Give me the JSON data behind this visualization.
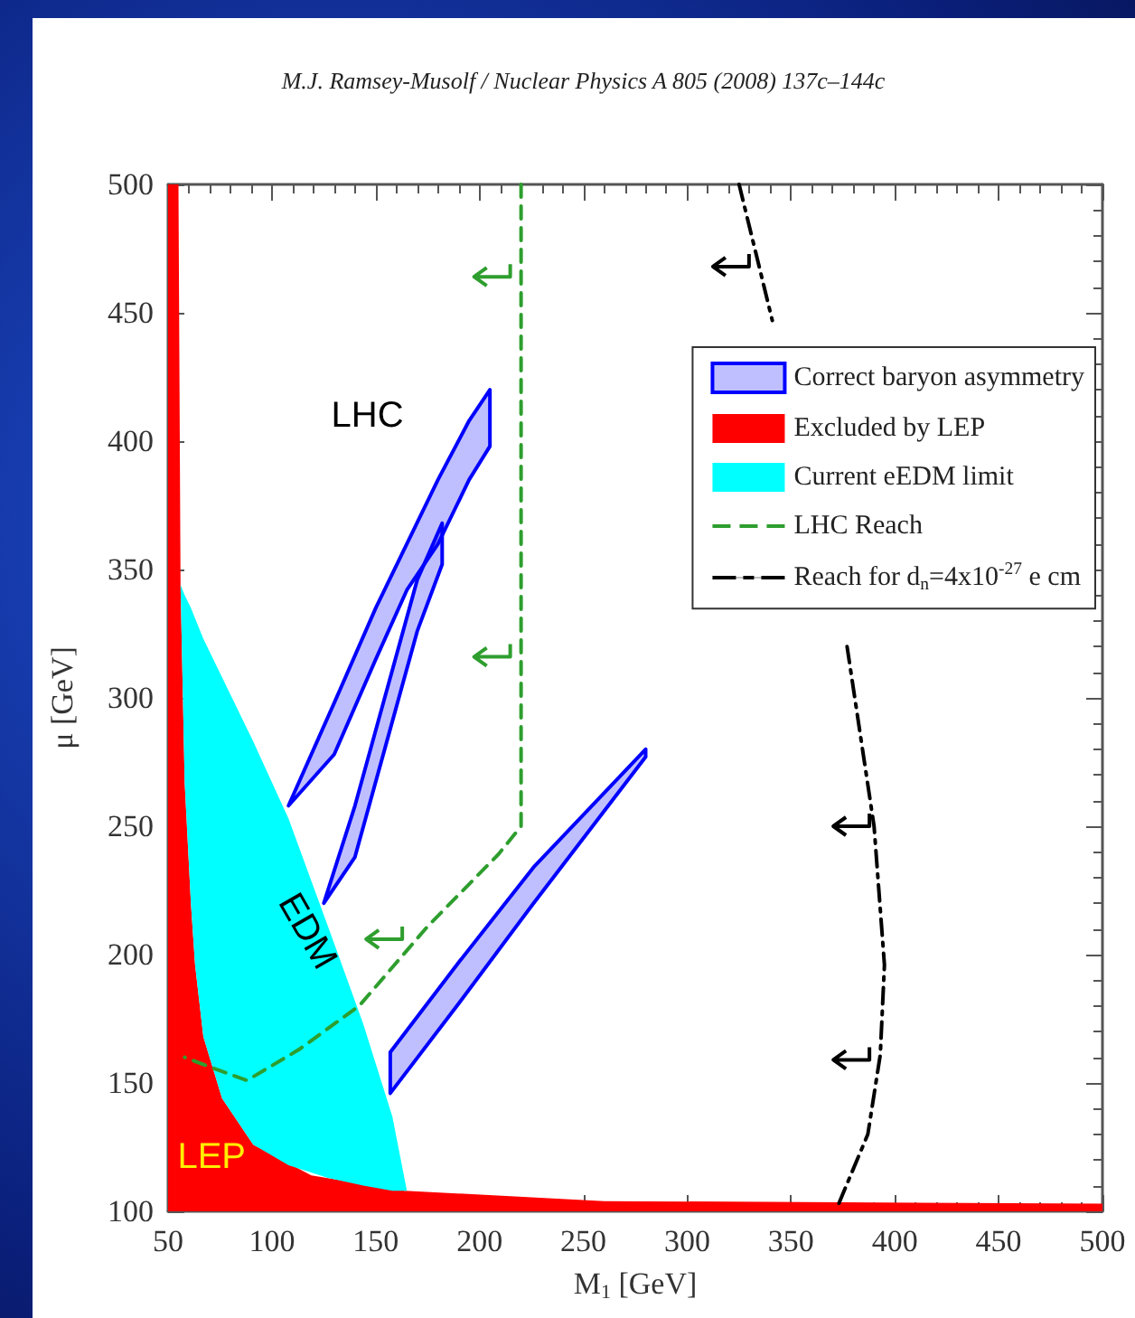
{
  "chart_data": {
    "type": "area",
    "xlabel": "M$_{1}$ [GeV]",
    "ylabel": "μ [GeV]",
    "xlim": [
      50,
      500
    ],
    "xticks": [
      50,
      100,
      150,
      200,
      250,
      300,
      350,
      400,
      450,
      500
    ],
    "ylim": [
      100,
      500
    ],
    "yticks": [
      100,
      150,
      200,
      250,
      300,
      350,
      400,
      450,
      500
    ],
    "grid": false,
    "legend": "top right",
    "annotations": [
      "M.J. Ramsey-Musolf / Nuclear Physics A 805 (2008) 137c–144c",
      "LHC",
      "EDM",
      "LEP"
    ],
    "series": [
      {
        "name": "Correct baryon asymmetry",
        "color": "#0000ff",
        "x": [
          157,
          190,
          226,
          280,
          280,
          226,
          190,
          157
        ],
        "values": [
          162,
          197,
          234,
          280,
          277,
          220,
          181,
          146
        ]
      },
      {
        "color": "#0000ff",
        "x": [
          108,
          130,
          150,
          165,
          180,
          195,
          205,
          205,
          195,
          180,
          165,
          150,
          130
        ],
        "values": [
          258,
          298,
          335,
          360,
          385,
          408,
          420,
          398,
          385,
          360,
          342,
          315,
          278
        ]
      },
      {
        "color": "#0000ff",
        "x": [
          125,
          140,
          155,
          170,
          182,
          182,
          170,
          155,
          140
        ],
        "values": [
          220,
          258,
          302,
          346,
          368,
          352,
          326,
          282,
          238
        ]
      },
      {
        "name": "Excluded by LEP",
        "color": "#ff0000",
        "x": [
          50,
          50,
          55,
          56,
          58,
          61,
          63,
          67,
          76,
          91,
          119,
          164,
          260,
          500,
          500
        ],
        "values": [
          100,
          500,
          500,
          344,
          267,
          220,
          196,
          168,
          144,
          126,
          114,
          108,
          104,
          103,
          100
        ]
      },
      {
        "name": "Current eEDM limit",
        "color": "#00ffff",
        "x": [
          56,
          58,
          61,
          63,
          67,
          76,
          91,
          108,
          127,
          144,
          158,
          165,
          158,
          144,
          127,
          108,
          91,
          76,
          67,
          63,
          61,
          58
        ],
        "values": [
          344,
          340,
          335,
          331,
          323,
          308,
          283,
          253,
          211,
          173,
          137,
          108,
          108,
          110,
          113,
          118,
          126,
          144,
          168,
          196,
          220,
          267
        ]
      },
      {
        "name": "LHC Reach",
        "type": "line",
        "line_style": "dashed",
        "color": "#2e9e2e",
        "x": [
          220,
          220,
          209,
          175,
          142,
          113,
          88,
          71,
          58
        ],
        "values": [
          500,
          250,
          239,
          211,
          180,
          163,
          151,
          156,
          160
        ]
      },
      {
        "name": "Reach for d$_{n}$=4x10$^{-27}$ e cm",
        "type": "line",
        "line_style": "dashdot",
        "color": "#000000",
        "x": [
          325,
          341,
          359,
          377,
          390,
          395,
          393,
          387,
          373
        ],
        "values": [
          500,
          447,
          null,
          320,
          250,
          196,
          161,
          130,
          103
        ]
      }
    ]
  }
}
